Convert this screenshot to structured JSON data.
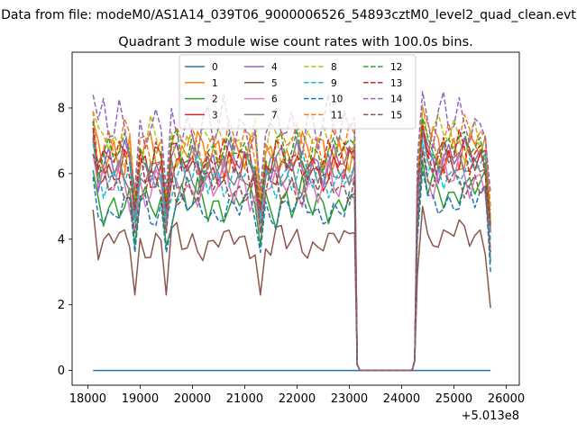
{
  "chart_data": {
    "type": "line",
    "suptitle": "Data from file: modeM0/AS1A14_039T06_9000006526_54893cztM0_level2_quad_clean.evt",
    "title": "Quadrant 3 module wise count rates with 100.0s bins.",
    "xlabel": "",
    "ylabel": "",
    "xlim": [
      17700,
      26250
    ],
    "ylim": [
      -0.45,
      9.7
    ],
    "xticks": [
      18000,
      19000,
      20000,
      21000,
      22000,
      23000,
      24000,
      25000,
      26000
    ],
    "yticks": [
      0,
      2,
      4,
      6,
      8
    ],
    "offset_label": "+5.013e8",
    "legend": {
      "location": "upper center",
      "ncol": 4
    },
    "baselines": {
      "times_seg1": [
        18100,
        18200,
        18300,
        18400,
        18500,
        18600,
        18700,
        18800,
        18900,
        19000,
        19100,
        19200,
        19300,
        19400,
        19500,
        19600,
        19700,
        19800,
        19900,
        20000,
        20100,
        20200,
        20300,
        20400,
        20500,
        20600,
        20700,
        20800,
        20900,
        21000,
        21100,
        21200,
        21300,
        21400,
        21500,
        21600,
        21700,
        21800,
        21900,
        22000,
        22100,
        22200,
        22300,
        22400,
        22500,
        22600,
        22700,
        22800,
        22900,
        23000,
        23100
      ],
      "times_seg2": [
        24300,
        24400,
        24500,
        24600,
        24700,
        24800,
        24900,
        25000,
        25100,
        25200,
        25300,
        25400,
        25500,
        25600,
        25700
      ],
      "gap_times": [
        23200,
        23300,
        24200
      ],
      "end_times": [
        23150,
        24250
      ]
    },
    "series": [
      {
        "name": "0",
        "color": "#1f77b4",
        "dash": "solid",
        "level1": 0,
        "level2": 0,
        "amp": 0,
        "phase": 0,
        "dip": 0
      },
      {
        "name": "1",
        "color": "#ff7f0e",
        "dash": "solid",
        "level1": 6.6,
        "level2": 6.7,
        "amp": 0.5,
        "phase": 0.4,
        "dip": 1.5
      },
      {
        "name": "2",
        "color": "#2ca02c",
        "dash": "solid",
        "level1": 5.1,
        "level2": 5.5,
        "amp": 0.45,
        "phase": 1.1,
        "dip": 1.3
      },
      {
        "name": "3",
        "color": "#d62728",
        "dash": "solid",
        "level1": 6.1,
        "level2": 6.4,
        "amp": 0.4,
        "phase": 2.0,
        "dip": 1.6
      },
      {
        "name": "4",
        "color": "#9467bd",
        "dash": "solid",
        "level1": 6.3,
        "level2": 6.5,
        "amp": 0.45,
        "phase": 2.7,
        "dip": 1.5
      },
      {
        "name": "5",
        "color": "#8c564b",
        "dash": "solid",
        "level1": 3.9,
        "level2": 4.1,
        "amp": 0.35,
        "phase": 3.3,
        "dip": 1.6
      },
      {
        "name": "6",
        "color": "#e377c2",
        "dash": "solid",
        "level1": 5.6,
        "level2": 5.9,
        "amp": 0.45,
        "phase": 4.1,
        "dip": 1.4
      },
      {
        "name": "7",
        "color": "#7f7f7f",
        "dash": "solid",
        "level1": 6.0,
        "level2": 6.4,
        "amp": 0.4,
        "phase": 4.8,
        "dip": 1.5
      },
      {
        "name": "8",
        "color": "#bcbd22",
        "dash": "dashed",
        "level1": 6.9,
        "level2": 7.2,
        "amp": 0.5,
        "phase": 5.5,
        "dip": 1.7
      },
      {
        "name": "9",
        "color": "#17becf",
        "dash": "dashed",
        "level1": 5.9,
        "level2": 6.1,
        "amp": 0.4,
        "phase": 0.9,
        "dip": 1.4
      },
      {
        "name": "10",
        "color": "#1f77b4",
        "dash": "dashed",
        "level1": 4.9,
        "level2": 5.2,
        "amp": 0.35,
        "phase": 1.7,
        "dip": 1.3
      },
      {
        "name": "11",
        "color": "#ff7f0e",
        "dash": "dashed",
        "level1": 6.9,
        "level2": 7.1,
        "amp": 0.45,
        "phase": 2.4,
        "dip": 1.6
      },
      {
        "name": "12",
        "color": "#2ca02c",
        "dash": "dashed",
        "level1": 6.6,
        "level2": 6.8,
        "amp": 0.5,
        "phase": 3.0,
        "dip": 1.6
      },
      {
        "name": "13",
        "color": "#d62728",
        "dash": "dashed",
        "level1": 6.4,
        "level2": 6.6,
        "amp": 0.45,
        "phase": 3.7,
        "dip": 1.5
      },
      {
        "name": "14",
        "color": "#9467bd",
        "dash": "dashed",
        "level1": 7.4,
        "level2": 7.6,
        "amp": 0.6,
        "phase": 4.4,
        "dip": 1.9
      },
      {
        "name": "15",
        "color": "#8c564b",
        "dash": "dashed",
        "level1": 5.6,
        "level2": 5.8,
        "amp": 0.4,
        "phase": 5.1,
        "dip": 1.4
      }
    ]
  }
}
